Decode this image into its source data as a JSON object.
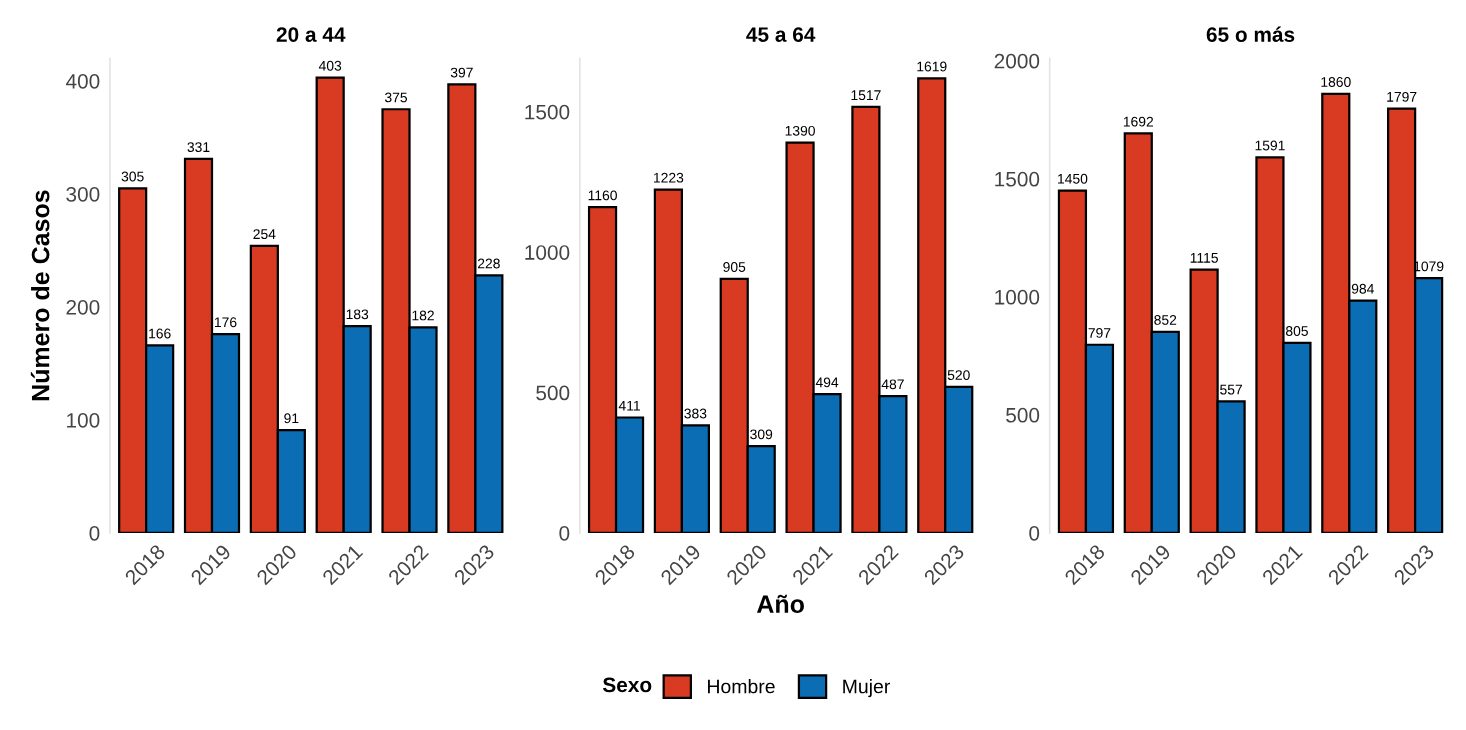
{
  "chart_data": [
    {
      "type": "bar",
      "title": "20 a 44",
      "ylabel": "Número de Casos",
      "categories": [
        "2018",
        "2019",
        "2020",
        "2021",
        "2022",
        "2023"
      ],
      "ylim": [
        0,
        420
      ],
      "yticks": [
        0,
        100,
        200,
        300,
        400
      ],
      "data_labels": true,
      "grid": false,
      "legend": "bottom",
      "legend_title": "Sexo",
      "series": [
        {
          "name": "Hombre",
          "color": "#d93a22",
          "values": [
            305,
            331,
            254,
            403,
            375,
            397
          ]
        },
        {
          "name": "Mujer",
          "color": "#0b6db3",
          "values": [
            166,
            176,
            91,
            183,
            182,
            228
          ]
        }
      ]
    },
    {
      "type": "bar",
      "title": "45 a 64",
      "xlabel": "Año",
      "categories": [
        "2018",
        "2019",
        "2020",
        "2021",
        "2022",
        "2023"
      ],
      "ylim": [
        0,
        1690
      ],
      "yticks": [
        0,
        500,
        1000,
        1500
      ],
      "data_labels": true,
      "grid": false,
      "series": [
        {
          "color": "#d93a22",
          "values": [
            1160,
            1223,
            905,
            1390,
            1517,
            1619
          ]
        },
        {
          "color": "#0b6db3",
          "values": [
            411,
            383,
            309,
            494,
            487,
            520
          ]
        }
      ]
    },
    {
      "type": "bar",
      "title": "65 o más",
      "categories": [
        "2018",
        "2019",
        "2020",
        "2021",
        "2022",
        "2023"
      ],
      "ylim": [
        0,
        2010
      ],
      "yticks": [
        0,
        500,
        1000,
        1500,
        2000
      ],
      "data_labels": true,
      "grid": false,
      "series": [
        {
          "color": "#d93a22",
          "values": [
            1450,
            1692,
            1115,
            1591,
            1860,
            1797
          ]
        },
        {
          "color": "#0b6db3",
          "values": [
            797,
            852,
            557,
            805,
            984,
            1079
          ]
        }
      ]
    }
  ]
}
